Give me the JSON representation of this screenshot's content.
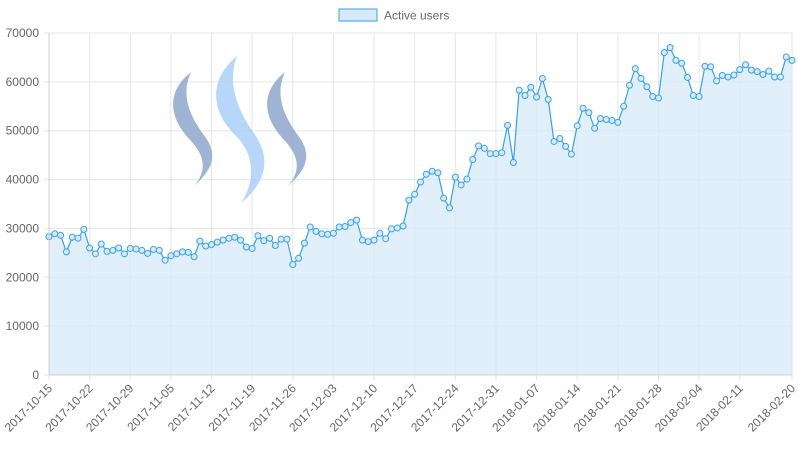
{
  "chart_data": {
    "type": "area",
    "title": "",
    "xlabel": "",
    "ylabel": "",
    "legend": {
      "position": "top-center",
      "entries": [
        "Active users"
      ]
    },
    "grid": true,
    "ylim": [
      0,
      70000
    ],
    "yticks": [
      0,
      10000,
      20000,
      30000,
      40000,
      50000,
      60000,
      70000
    ],
    "xlim": [
      "2017-10-15",
      "2018-02-20"
    ],
    "xticks": [
      "2017-10-15",
      "2017-10-22",
      "2017-10-29",
      "2017-11-05",
      "2017-11-12",
      "2017-11-19",
      "2017-11-26",
      "2017-12-03",
      "2017-12-10",
      "2017-12-17",
      "2017-12-24",
      "2017-12-31",
      "2018-01-07",
      "2018-01-14",
      "2018-01-21",
      "2018-01-28",
      "2018-02-04",
      "2018-02-11",
      "2018-02-20"
    ],
    "colors": {
      "line": "#36a2eb",
      "fill": "#d7eaf9",
      "grid": "#e6e6e6",
      "axis": "#d0d0d0",
      "logo_dark": "#8ea7cc",
      "logo_light": "#a9d0f8"
    },
    "watermark_icon": "steem-logo-icon",
    "series": [
      {
        "name": "Active users",
        "values": [
          28300,
          28900,
          28600,
          25200,
          28200,
          28000,
          29800,
          26000,
          24800,
          26800,
          25300,
          25500,
          26000,
          24800,
          25900,
          25800,
          25500,
          24900,
          25700,
          25500,
          23500,
          24400,
          24800,
          25200,
          25100,
          24200,
          27400,
          26400,
          26700,
          27200,
          27600,
          28000,
          28200,
          27600,
          26200,
          25900,
          28500,
          27500,
          28000,
          26500,
          27800,
          27800,
          22600,
          23900,
          27000,
          30300,
          29400,
          28900,
          28800,
          29000,
          30300,
          30400,
          31200,
          31700,
          27600,
          27300,
          27600,
          29000,
          27900,
          29900,
          30100,
          30500,
          35800,
          37000,
          39500,
          41100,
          41700,
          41400,
          36200,
          34200,
          40500,
          38900,
          40100,
          44100,
          46900,
          46400,
          45300,
          45300,
          45500,
          51100,
          43500,
          58300,
          57200,
          58900,
          56900,
          60700,
          56400,
          47800,
          48400,
          46800,
          45200,
          51000,
          54600,
          53700,
          50500,
          52500,
          52300,
          52100,
          51700,
          55000,
          59300,
          62700,
          60700,
          59000,
          57000,
          56700,
          66000,
          67000,
          64400,
          63800,
          60900,
          57200,
          57000,
          63200,
          63100,
          60200,
          61300,
          61000,
          61400,
          62500,
          63500,
          62400,
          62100,
          61500,
          62200,
          61000,
          61000,
          65100,
          64400
        ]
      }
    ]
  }
}
